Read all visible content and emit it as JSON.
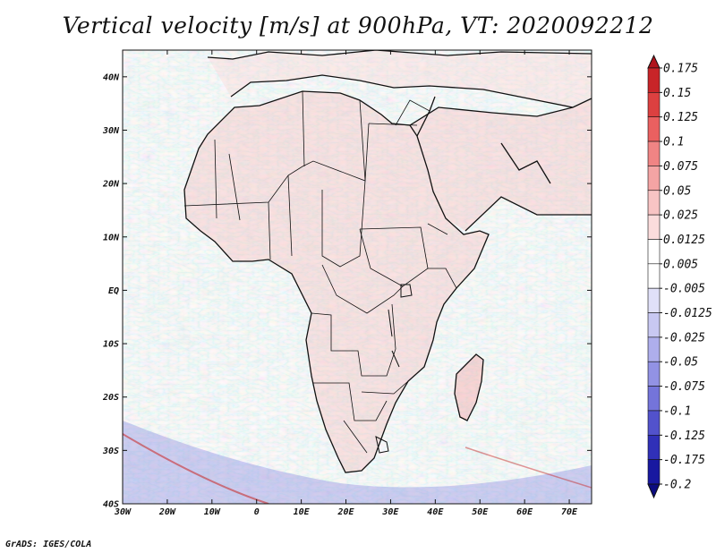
{
  "title": "Vertical velocity [m/s] at 900hPa, VT: 2020092212",
  "credit": "GrADS: IGES/COLA",
  "map": {
    "lat_labels": [
      "40N",
      "30N",
      "20N",
      "10N",
      "EQ",
      "10S",
      "20S",
      "30S",
      "40S"
    ],
    "lon_labels": [
      "30W",
      "20W",
      "10W",
      "0",
      "10E",
      "20E",
      "30E",
      "40E",
      "50E",
      "60E",
      "70E"
    ],
    "lat_range": [
      -40,
      45
    ],
    "lon_range": [
      -30,
      75
    ]
  },
  "colorbar": {
    "levels": [
      "0.175",
      "0.15",
      "0.125",
      "0.1",
      "0.075",
      "0.05",
      "0.025",
      "0.0125",
      "0.005",
      "-0.005",
      "-0.0125",
      "-0.025",
      "-0.05",
      "-0.075",
      "-0.1",
      "-0.125",
      "-0.175",
      "-0.2"
    ],
    "colors": [
      "#b0141c",
      "#c82428",
      "#dc4040",
      "#ea6060",
      "#f08484",
      "#f4a4a4",
      "#f8c4c4",
      "#fbdcdc",
      "#ffffff",
      "#ffffff",
      "#e0e0f8",
      "#c8c8f2",
      "#aeaeec",
      "#9292e4",
      "#7474da",
      "#5252cc",
      "#3030b8",
      "#1818a0",
      "#0c0c80"
    ]
  }
}
